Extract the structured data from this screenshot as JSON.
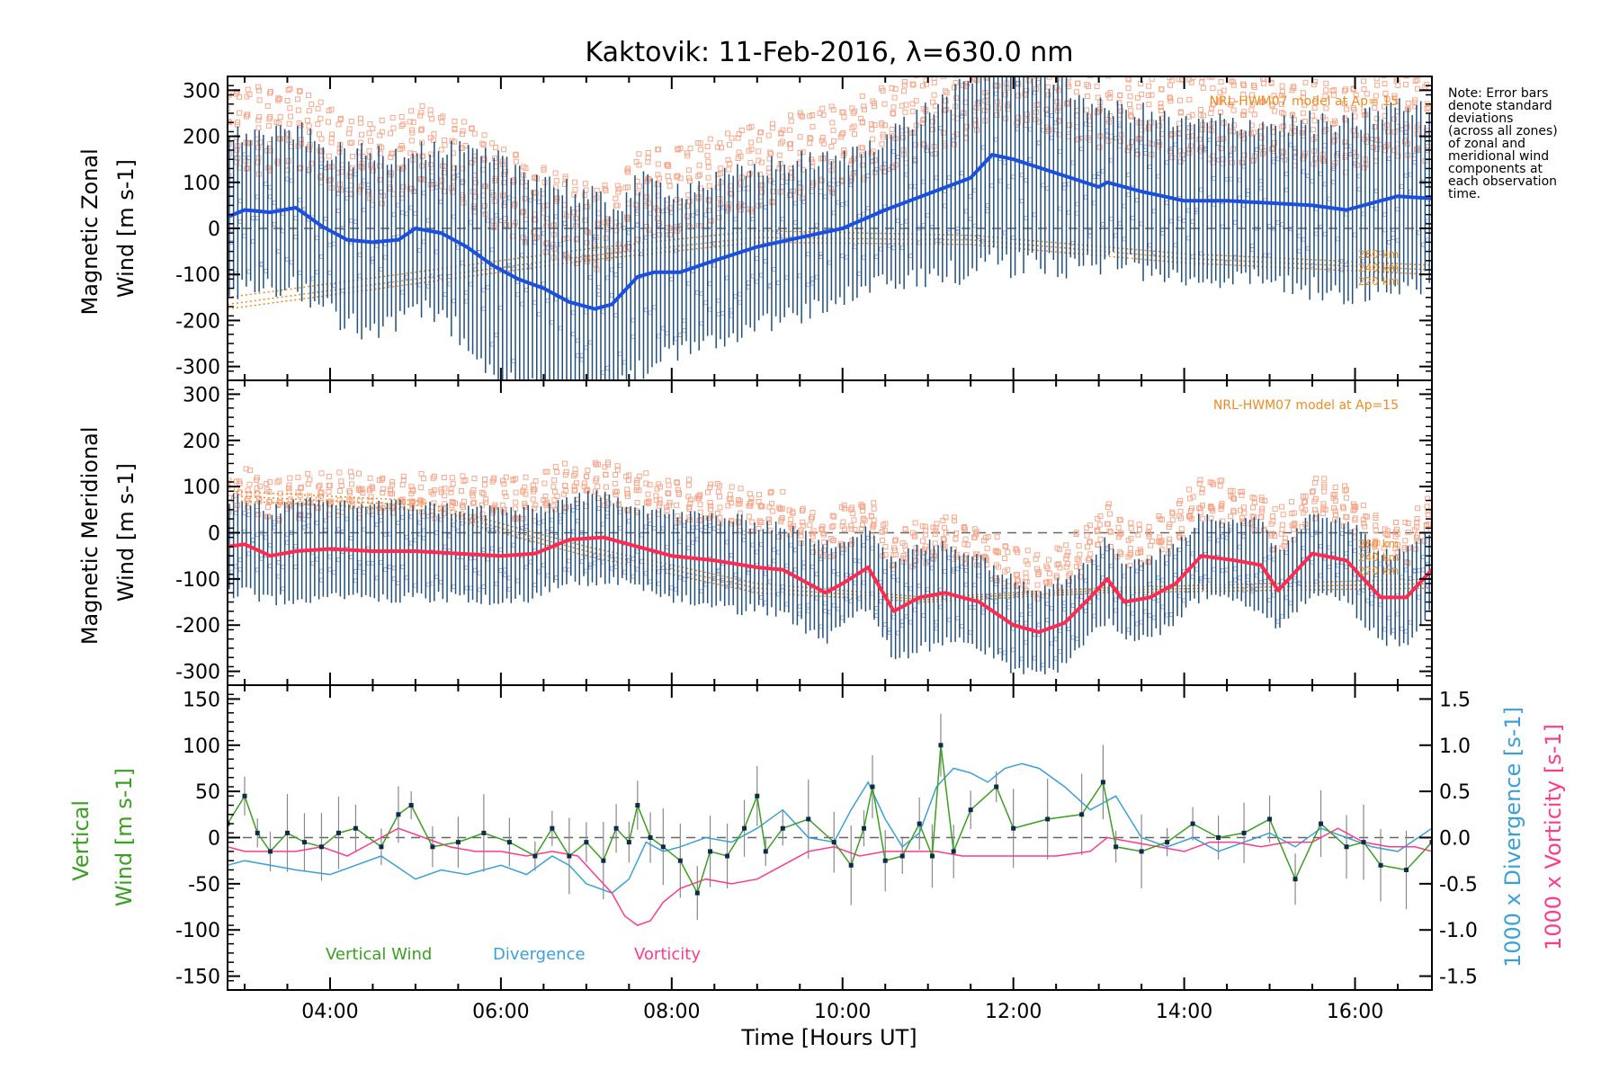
{
  "figure": {
    "title": "Kaktovik: 11-Feb-2016, λ=630.0 nm",
    "xlabel": "Time [Hours UT]",
    "x_ticks": [
      "04:00",
      "06:00",
      "08:00",
      "10:00",
      "12:00",
      "14:00",
      "16:00"
    ],
    "note_lines": [
      "Note: Error bars",
      "denote standard",
      "deviations",
      "(across all zones)",
      "of zonal and",
      "meridional wind",
      "components at",
      "each observation",
      "time."
    ],
    "colors": {
      "zonal": "#1a4fe0",
      "meridional": "#ff2a50",
      "errorbar": "#1f4f7a",
      "model_box": "#f7a88c",
      "model_line": "#f08a1c",
      "vertical": "#3aa020",
      "divergence": "#3aa0d8",
      "vorticity": "#ff3a8a"
    }
  },
  "chart_data": [
    {
      "type": "line",
      "ylabel_lines": [
        "Magnetic Zonal",
        "Wind [m s-1]"
      ],
      "ylim": [
        -330,
        330
      ],
      "y_ticks": [
        300,
        200,
        100,
        0,
        -100,
        -200,
        -300
      ],
      "model_label": "NRL-HWM07 model at Ap= 15",
      "altitude_labels": [
        "260 km",
        "240 km",
        "220 km"
      ],
      "series": [
        {
          "x": [
            2.8,
            3.0,
            3.3,
            3.6,
            3.9,
            4.2,
            4.5,
            4.8,
            5.0,
            5.3,
            5.6,
            5.9,
            6.2,
            6.5,
            6.8,
            7.1,
            7.3,
            7.6,
            7.8,
            8.1,
            8.5,
            9.0,
            9.5,
            10.0,
            10.5,
            11.0,
            11.5,
            11.75,
            12.0,
            12.5,
            13.0,
            13.1,
            13.5,
            14.0,
            14.5,
            15.0,
            15.5,
            15.9,
            16.2,
            16.5,
            16.9
          ],
          "y": [
            25,
            40,
            35,
            45,
            5,
            -25,
            -30,
            -25,
            0,
            -10,
            -40,
            -80,
            -110,
            -130,
            -160,
            -175,
            -165,
            -105,
            -95,
            -95,
            -70,
            -40,
            -20,
            0,
            40,
            75,
            110,
            160,
            150,
            120,
            90,
            100,
            80,
            60,
            60,
            55,
            50,
            40,
            55,
            70,
            65
          ],
          "err": [
            160,
            170,
            160,
            170,
            170,
            180,
            190,
            185,
            180,
            175,
            200,
            220,
            240,
            240,
            240,
            230,
            210,
            200,
            190,
            180,
            170,
            170,
            165,
            150,
            160,
            180,
            200,
            220,
            230,
            200,
            170,
            160,
            170,
            165,
            170,
            170,
            180,
            180,
            190,
            195,
            180
          ]
        }
      ]
    },
    {
      "type": "line",
      "ylabel_lines": [
        "Magnetic Meridional",
        "Wind [m s-1]"
      ],
      "ylim": [
        -330,
        330
      ],
      "y_ticks": [
        300,
        200,
        100,
        0,
        -100,
        -200,
        -300
      ],
      "model_label": "NRL-HWM07 model at Ap=15",
      "altitude_labels": [
        "260 km",
        "240 km",
        "220 km"
      ],
      "series": [
        {
          "x": [
            2.8,
            3.0,
            3.3,
            3.6,
            4.0,
            4.5,
            5.0,
            5.5,
            6.0,
            6.4,
            6.8,
            7.2,
            7.6,
            8.0,
            8.5,
            9.0,
            9.3,
            9.8,
            10.0,
            10.3,
            10.6,
            10.9,
            11.2,
            11.6,
            12.0,
            12.3,
            12.6,
            12.9,
            13.1,
            13.3,
            13.6,
            13.9,
            14.2,
            14.6,
            14.9,
            15.1,
            15.5,
            15.9,
            16.3,
            16.6,
            16.9
          ],
          "y": [
            -30,
            -25,
            -50,
            -40,
            -35,
            -40,
            -40,
            -45,
            -50,
            -45,
            -15,
            -10,
            -30,
            -50,
            -60,
            -75,
            -80,
            -130,
            -110,
            -75,
            -170,
            -140,
            -130,
            -150,
            -200,
            -215,
            -195,
            -140,
            -100,
            -150,
            -140,
            -110,
            -50,
            -60,
            -70,
            -125,
            -45,
            -60,
            -140,
            -140,
            -80
          ],
          "err": [
            100,
            100,
            100,
            100,
            100,
            100,
            100,
            95,
            100,
            90,
            90,
            90,
            90,
            90,
            95,
            95,
            95,
            100,
            95,
            90,
            100,
            110,
            105,
            100,
            95,
            100,
            95,
            90,
            85,
            85,
            85,
            80,
            85,
            90,
            90,
            85,
            90,
            90,
            95,
            95,
            90
          ]
        }
      ]
    },
    {
      "type": "line",
      "ylabel_lines": [
        "Vertical",
        "Wind [m s-1]"
      ],
      "ylim": [
        -165,
        165
      ],
      "y_ticks": [
        150,
        100,
        50,
        0,
        -50,
        -100,
        -150
      ],
      "y2label_lines": [
        "1000 x Divergence [s-1]",
        "1000 x Vorticity [s-1]"
      ],
      "y2lim": [
        -1.65,
        1.65
      ],
      "y2_ticks": [
        "1.5",
        "1.0",
        "0.5",
        "0.0",
        "-0.5",
        "-1.0",
        "-1.5"
      ],
      "legend": [
        "Vertical Wind",
        "Divergence",
        "Vorticity"
      ],
      "series": [
        {
          "name": "Vertical Wind",
          "x": [
            2.8,
            3.0,
            3.15,
            3.3,
            3.5,
            3.7,
            3.9,
            4.1,
            4.3,
            4.6,
            4.8,
            4.95,
            5.2,
            5.5,
            5.8,
            6.1,
            6.4,
            6.6,
            6.8,
            7.0,
            7.2,
            7.35,
            7.5,
            7.6,
            7.75,
            7.9,
            8.1,
            8.3,
            8.45,
            8.65,
            8.85,
            9.0,
            9.1,
            9.3,
            9.6,
            9.9,
            10.1,
            10.25,
            10.35,
            10.5,
            10.7,
            10.9,
            11.05,
            11.15,
            11.3,
            11.5,
            11.8,
            12.0,
            12.4,
            12.8,
            13.05,
            13.2,
            13.5,
            13.8,
            14.1,
            14.4,
            14.7,
            15.0,
            15.3,
            15.6,
            15.9,
            16.1,
            16.3,
            16.6,
            16.9
          ],
          "y": [
            15,
            45,
            5,
            -15,
            5,
            -5,
            -10,
            5,
            10,
            -10,
            25,
            35,
            -10,
            -5,
            5,
            -5,
            -20,
            10,
            -20,
            -5,
            -25,
            10,
            -5,
            35,
            0,
            -10,
            -25,
            -60,
            -15,
            -20,
            10,
            45,
            -15,
            10,
            20,
            -5,
            -30,
            10,
            55,
            -25,
            -20,
            15,
            -20,
            100,
            -15,
            30,
            55,
            10,
            20,
            25,
            60,
            -10,
            -15,
            -5,
            15,
            0,
            5,
            20,
            -45,
            15,
            -10,
            -5,
            -30,
            -35,
            -5
          ]
        },
        {
          "name": "Divergence",
          "x": [
            2.8,
            3.0,
            3.3,
            3.6,
            4.0,
            4.3,
            4.6,
            5.0,
            5.3,
            5.6,
            6.0,
            6.3,
            6.6,
            6.8,
            7.0,
            7.3,
            7.5,
            7.7,
            7.9,
            8.1,
            8.4,
            8.7,
            9.0,
            9.3,
            9.6,
            9.9,
            10.1,
            10.3,
            10.5,
            10.7,
            10.9,
            11.1,
            11.3,
            11.5,
            11.7,
            11.9,
            12.1,
            12.3,
            12.6,
            12.9,
            13.2,
            13.5,
            13.8,
            14.1,
            14.4,
            14.7,
            15.0,
            15.3,
            15.6,
            15.9,
            16.2,
            16.5,
            16.9
          ],
          "y": [
            -0.3,
            -0.25,
            -0.3,
            -0.35,
            -0.4,
            -0.3,
            -0.2,
            -0.45,
            -0.35,
            -0.4,
            -0.3,
            -0.4,
            -0.2,
            -0.3,
            -0.5,
            -0.6,
            -0.45,
            -0.05,
            -0.15,
            -0.1,
            0.0,
            -0.05,
            0.1,
            0.3,
            0.0,
            -0.05,
            0.3,
            0.6,
            0.2,
            -0.1,
            0.05,
            0.55,
            0.75,
            0.7,
            0.6,
            0.75,
            0.8,
            0.75,
            0.55,
            0.3,
            0.45,
            0.0,
            -0.1,
            0.0,
            -0.15,
            -0.05,
            0.05,
            -0.1,
            0.1,
            0.0,
            -0.1,
            -0.15,
            0.1
          ]
        },
        {
          "name": "Vorticity",
          "x": [
            2.8,
            3.0,
            3.3,
            3.6,
            3.9,
            4.2,
            4.5,
            4.8,
            5.1,
            5.4,
            5.7,
            6.0,
            6.3,
            6.6,
            6.9,
            7.1,
            7.3,
            7.45,
            7.6,
            7.75,
            7.9,
            8.1,
            8.4,
            8.7,
            9.0,
            9.3,
            9.6,
            9.9,
            10.2,
            10.5,
            10.8,
            11.1,
            11.4,
            11.7,
            12.0,
            12.5,
            12.9,
            13.1,
            13.4,
            13.7,
            14.0,
            14.3,
            14.6,
            14.9,
            15.2,
            15.5,
            15.8,
            16.1,
            16.4,
            16.7,
            16.9
          ],
          "y": [
            -0.1,
            -0.15,
            -0.15,
            -0.15,
            -0.1,
            -0.2,
            -0.05,
            0.1,
            0.0,
            -0.1,
            -0.15,
            -0.15,
            -0.2,
            -0.15,
            -0.2,
            -0.4,
            -0.6,
            -0.85,
            -0.95,
            -0.9,
            -0.7,
            -0.55,
            -0.45,
            -0.5,
            -0.45,
            -0.3,
            -0.15,
            -0.1,
            -0.2,
            -0.15,
            -0.15,
            -0.15,
            -0.2,
            -0.2,
            -0.2,
            -0.2,
            -0.15,
            0.0,
            -0.05,
            -0.1,
            -0.15,
            -0.05,
            -0.05,
            -0.1,
            -0.05,
            -0.05,
            0.1,
            -0.05,
            -0.1,
            -0.1,
            -0.15
          ]
        }
      ]
    }
  ]
}
